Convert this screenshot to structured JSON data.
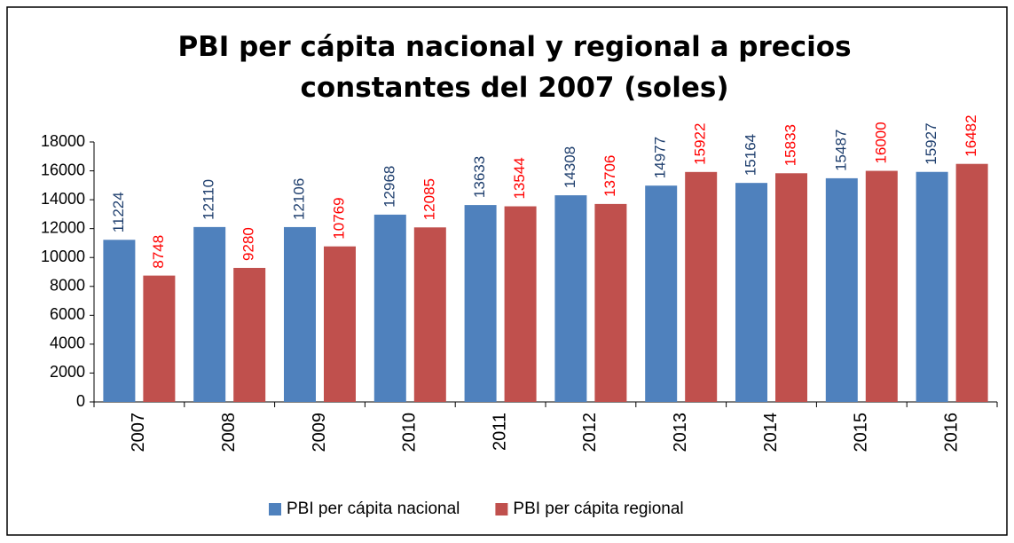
{
  "chart_data": {
    "type": "bar",
    "title": "PBI per cápita nacional y regional a precios constantes del 2007 (soles)",
    "categories": [
      "2007",
      "2008",
      "2009",
      "2010",
      "2011",
      "2012",
      "2013",
      "2014",
      "2015",
      "2016"
    ],
    "series": [
      {
        "name": "PBI per cápita nacional",
        "color": "#4f81bd",
        "label_color": "#1f3f6e",
        "values": [
          11224,
          12110,
          12106,
          12968,
          13633,
          14308,
          14977,
          15164,
          15487,
          15927
        ]
      },
      {
        "name": "PBI per cápita regional",
        "color": "#c0504d",
        "label_color": "#ff0000",
        "values": [
          8748,
          9280,
          10769,
          12085,
          13544,
          13706,
          15922,
          15833,
          16000,
          16482
        ]
      }
    ],
    "ylim": [
      0,
      18000
    ],
    "yticks": [
      0,
      2000,
      4000,
      6000,
      8000,
      10000,
      12000,
      14000,
      16000,
      18000
    ],
    "grid": false,
    "legend": "bottom"
  }
}
